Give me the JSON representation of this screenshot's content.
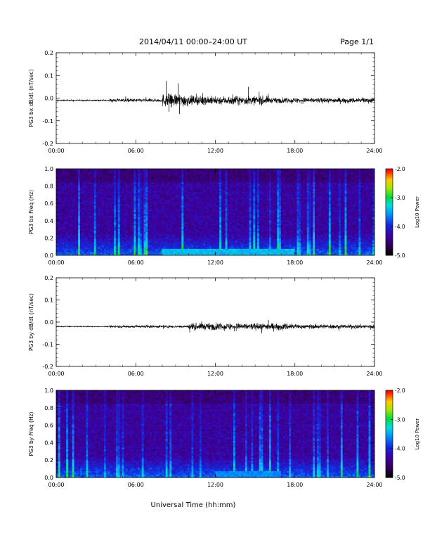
{
  "header": {
    "title": "2014/04/11  00:00–24:00 UT",
    "page": "Page 1/1"
  },
  "footer": {
    "xlabel": "Universal Time (hh:mm)"
  },
  "chart_data": [
    {
      "type": "line",
      "ylabel": "PG3 bx dB/dt (nT/sec)",
      "xlim": [
        "00:00",
        "24:00"
      ],
      "xticks": [
        "00:00",
        "06:00",
        "12:00",
        "18:00",
        "24:00"
      ],
      "ylim": [
        -0.2,
        0.2
      ],
      "yticks": [
        "-0.2",
        "-0.1",
        "0.0",
        "0.1",
        "0.2"
      ],
      "baseline": -0.01,
      "activity": [
        {
          "x": [
            0,
            4
          ],
          "amplitude": 0.003
        },
        {
          "x": [
            4,
            8
          ],
          "amplitude": 0.008
        },
        {
          "x": [
            8,
            10
          ],
          "amplitude": 0.03
        },
        {
          "x": [
            10,
            16
          ],
          "amplitude": 0.02
        },
        {
          "x": [
            16,
            24
          ],
          "amplitude": 0.012
        }
      ],
      "peaks": [
        {
          "x": 8.3,
          "y": 0.075
        },
        {
          "x": 9.2,
          "y": 0.065
        },
        {
          "x": 8.5,
          "y": -0.06
        },
        {
          "x": 9.3,
          "y": -0.07
        },
        {
          "x": 14.5,
          "y": 0.05
        }
      ]
    },
    {
      "type": "heatmap",
      "ylabel": "PG3 bx Freq (Hz)",
      "xlim": [
        "00:00",
        "24:00"
      ],
      "xticks": [
        "00:00",
        "06:00",
        "12:00",
        "18:00",
        "24:00"
      ],
      "ylim": [
        0.0,
        1.0
      ],
      "yticks": [
        "0.0",
        "0.2",
        "0.4",
        "0.6",
        "0.8",
        "1.0"
      ],
      "colorbar": {
        "label": "Log10 Power",
        "range": [
          -5.0,
          -2.0
        ],
        "ticks": [
          "-5.0",
          "-4.0",
          "-3.0",
          "-2.0"
        ]
      },
      "low_freq_enhancement": [
        {
          "x": [
            8,
            18
          ],
          "level": -3.4
        }
      ]
    },
    {
      "type": "line",
      "ylabel": "PG3 by dB/dt (nT/sec)",
      "xlim": [
        "00:00",
        "24:00"
      ],
      "xticks": [
        "00:00",
        "06:00",
        "12:00",
        "18:00",
        "24:00"
      ],
      "ylim": [
        -0.2,
        0.2
      ],
      "yticks": [
        "-0.2",
        "-0.1",
        "0.0",
        "0.1",
        "0.2"
      ],
      "baseline": -0.02,
      "activity": [
        {
          "x": [
            0,
            4
          ],
          "amplitude": 0.002
        },
        {
          "x": [
            4,
            10
          ],
          "amplitude": 0.006
        },
        {
          "x": [
            10,
            18
          ],
          "amplitude": 0.016
        },
        {
          "x": [
            18,
            24
          ],
          "amplitude": 0.01
        }
      ],
      "peaks": [
        {
          "x": 15.5,
          "y": -0.05
        },
        {
          "x": 16.0,
          "y": 0.01
        }
      ]
    },
    {
      "type": "heatmap",
      "ylabel": "PG3 by Freq (Hz)",
      "xlim": [
        "00:00",
        "24:00"
      ],
      "xticks": [
        "00:00",
        "06:00",
        "12:00",
        "18:00",
        "24:00"
      ],
      "ylim": [
        0.0,
        1.0
      ],
      "yticks": [
        "0.0",
        "0.2",
        "0.4",
        "0.6",
        "0.8",
        "1.0"
      ],
      "colorbar": {
        "label": "Log10 Power",
        "range": [
          -5.0,
          -2.0
        ],
        "ticks": [
          "-5.0",
          "-4.0",
          "-3.0",
          "-2.0"
        ]
      },
      "low_freq_enhancement": [
        {
          "x": [
            12,
            17
          ],
          "level": -3.6
        }
      ]
    }
  ]
}
